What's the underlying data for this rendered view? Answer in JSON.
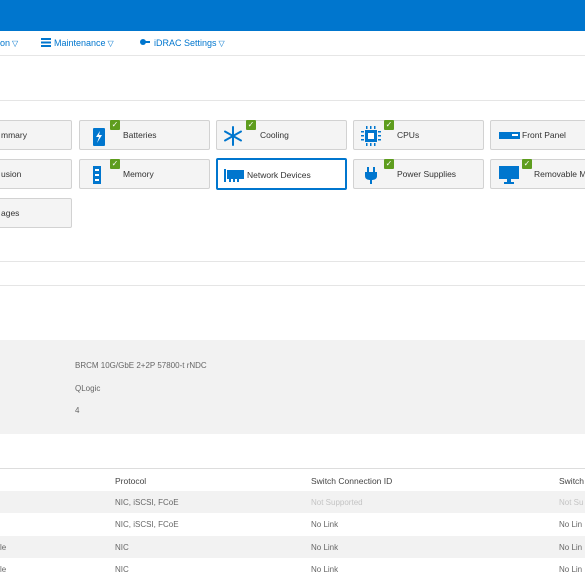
{
  "menu": {
    "items": [
      {
        "label": "on",
        "chevron": "▽"
      },
      {
        "label": "Maintenance",
        "chevron": "▽"
      },
      {
        "label": "iDRAC Settings",
        "chevron": "▽"
      }
    ]
  },
  "tiles": {
    "summary": "mmary",
    "batteries": "Batteries",
    "cooling": "Cooling",
    "cpus": "CPUs",
    "front_panel": "Front Panel",
    "intrusion": "usion",
    "memory": "Memory",
    "network_devices": "Network Devices",
    "power_supplies": "Power Supplies",
    "removable_media": "Removable M",
    "voltages": "ages"
  },
  "device_info": {
    "name": "BRCM 10G/GbE 2+2P 57800-t rNDC",
    "vendor": "QLogic",
    "ports": "4"
  },
  "table": {
    "headers": [
      "Protocol",
      "Switch Connection ID",
      "Switch"
    ],
    "rows": [
      {
        "col0": "",
        "protocol": "NIC, iSCSI, FCoE",
        "switch_id": "Not Supported",
        "switch": "Not Su",
        "muted": true
      },
      {
        "col0": "",
        "protocol": "NIC, iSCSI, FCoE",
        "switch_id": "No Link",
        "switch": "No Lin",
        "muted": false
      },
      {
        "col0": "le",
        "protocol": "NIC",
        "switch_id": "No Link",
        "switch": "No Lin",
        "muted": false
      },
      {
        "col0": "le",
        "protocol": "NIC",
        "switch_id": "No Link",
        "switch": "No Lin",
        "muted": false
      }
    ]
  },
  "colors": {
    "accent": "#0076ce",
    "ok_green": "#5e9d1e",
    "panel_bg": "#f2f2f2"
  }
}
